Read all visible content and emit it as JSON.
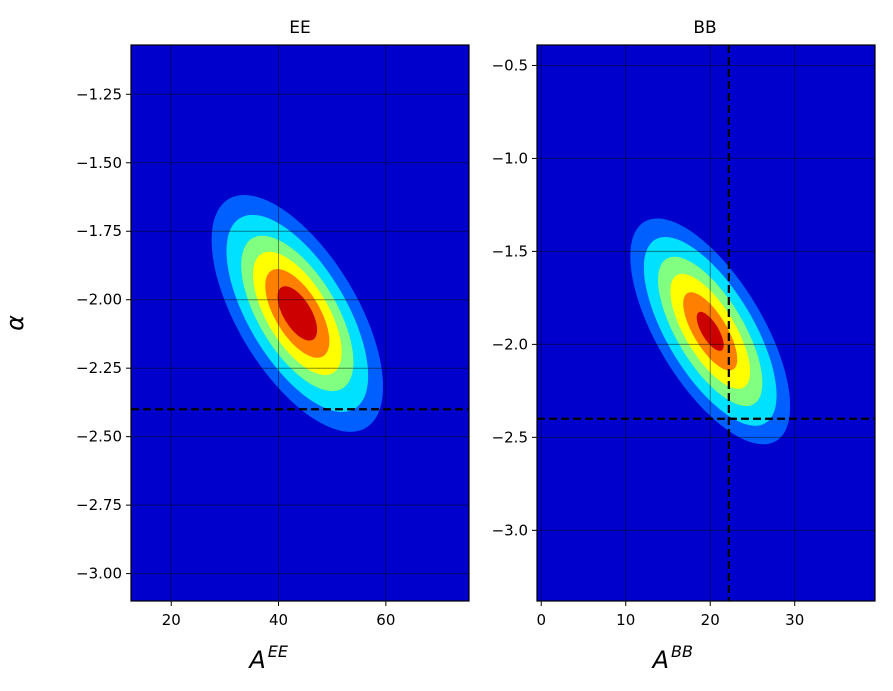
{
  "figure": {
    "background": "#ffffff",
    "colormap": [
      "#0000cd",
      "#0060ff",
      "#00e0ff",
      "#80ff80",
      "#ffff00",
      "#ff8000",
      "#ff2000",
      "#cd0000"
    ],
    "grid": true,
    "grid_color": "#000000",
    "reference_line_style": "dashed black"
  },
  "chart_data": [
    {
      "type": "contour",
      "title": "EE",
      "xlabel": "A",
      "xlabel_sup": "EE",
      "ylabel": "α",
      "xlim": [
        12.5,
        75.5
      ],
      "ylim": [
        -3.1,
        -1.07
      ],
      "xticks": [
        20,
        40,
        60
      ],
      "xtick_labels": [
        "20",
        "40",
        "60"
      ],
      "yticks": [
        -1.25,
        -1.5,
        -1.75,
        -2.0,
        -2.25,
        -2.5,
        -2.75,
        -3.0
      ],
      "ytick_labels": [
        "−1.25",
        "−1.50",
        "−1.75",
        "−2.00",
        "−2.25",
        "−2.50",
        "−2.75",
        "−3.00"
      ],
      "contours": {
        "center": [
          43.5,
          -2.05
        ],
        "principal_angle_deg": -31,
        "levels": [
          {
            "radius_along": 0.96,
            "radius_across": 0.43,
            "color": "#0060ff"
          },
          {
            "radius_along": 0.8,
            "radius_across": 0.35,
            "color": "#00e0ff"
          },
          {
            "radius_along": 0.63,
            "radius_across": 0.28,
            "color": "#80ff80"
          },
          {
            "radius_along": 0.5,
            "radius_across": 0.22,
            "color": "#ffff00"
          },
          {
            "radius_along": 0.36,
            "radius_across": 0.16,
            "color": "#ff8000"
          },
          {
            "radius_along": 0.22,
            "radius_across": 0.1,
            "color": "#cd0000"
          }
        ]
      },
      "reference_lines": {
        "x": null,
        "y": -2.4
      }
    },
    {
      "type": "contour",
      "title": "BB",
      "xlabel": "A",
      "xlabel_sup": "BB",
      "ylabel": "",
      "xlim": [
        -0.5,
        39.5
      ],
      "ylim": [
        -3.38,
        -0.39
      ],
      "xticks": [
        0,
        10,
        20,
        30
      ],
      "xtick_labels": [
        "0",
        "10",
        "20",
        "30"
      ],
      "yticks": [
        -0.5,
        -1.0,
        -1.5,
        -2.0,
        -2.5,
        -3.0
      ],
      "ytick_labels": [
        "−0.5",
        "−1.0",
        "−1.5",
        "−2.0",
        "−2.5",
        "−3.0"
      ],
      "contours": {
        "center": [
          20.0,
          -1.93
        ],
        "principal_angle_deg": -31,
        "levels": [
          {
            "radius_along": 0.92,
            "radius_across": 0.38,
            "color": "#0060ff"
          },
          {
            "radius_along": 0.77,
            "radius_across": 0.31,
            "color": "#00e0ff"
          },
          {
            "radius_along": 0.61,
            "radius_across": 0.24,
            "color": "#80ff80"
          },
          {
            "radius_along": 0.47,
            "radius_across": 0.18,
            "color": "#ffff00"
          },
          {
            "radius_along": 0.32,
            "radius_across": 0.12,
            "color": "#ff8000"
          },
          {
            "radius_along": 0.16,
            "radius_across": 0.06,
            "color": "#cd0000"
          }
        ]
      },
      "reference_lines": {
        "x": 22.2,
        "y": -2.4
      }
    }
  ]
}
